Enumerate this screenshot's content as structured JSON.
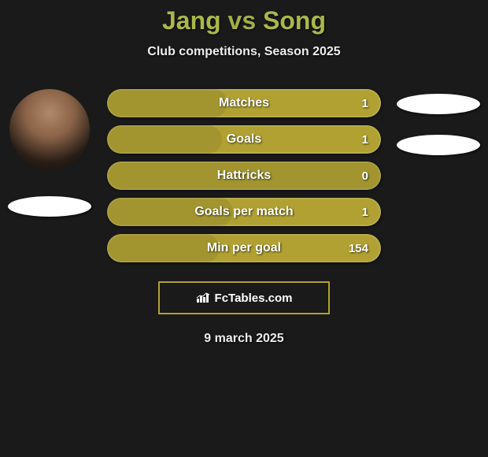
{
  "title_parts": {
    "p1": "Jang",
    "vs": "vs",
    "p2": "Song"
  },
  "title_color": "#aab84a",
  "subtitle": "Club competitions, Season 2025",
  "date": "9 march 2025",
  "brand": {
    "text": "FcTables.com"
  },
  "colors": {
    "bar_bg": "#b0a132",
    "page_bg": "#1a1a1a",
    "pill_bg": "#ffffff",
    "brand_border": "#b0a132"
  },
  "stats": [
    {
      "label": "Matches",
      "right_value": "1",
      "left_fill_pct": 44
    },
    {
      "label": "Goals",
      "right_value": "1",
      "left_fill_pct": 42
    },
    {
      "label": "Hattricks",
      "right_value": "0",
      "left_fill_pct": 100
    },
    {
      "label": "Goals per match",
      "right_value": "1",
      "left_fill_pct": 46
    },
    {
      "label": "Min per goal",
      "right_value": "154",
      "left_fill_pct": 41
    }
  ],
  "left_player": {
    "has_avatar": true
  },
  "right_player": {
    "pill_count": 2
  }
}
